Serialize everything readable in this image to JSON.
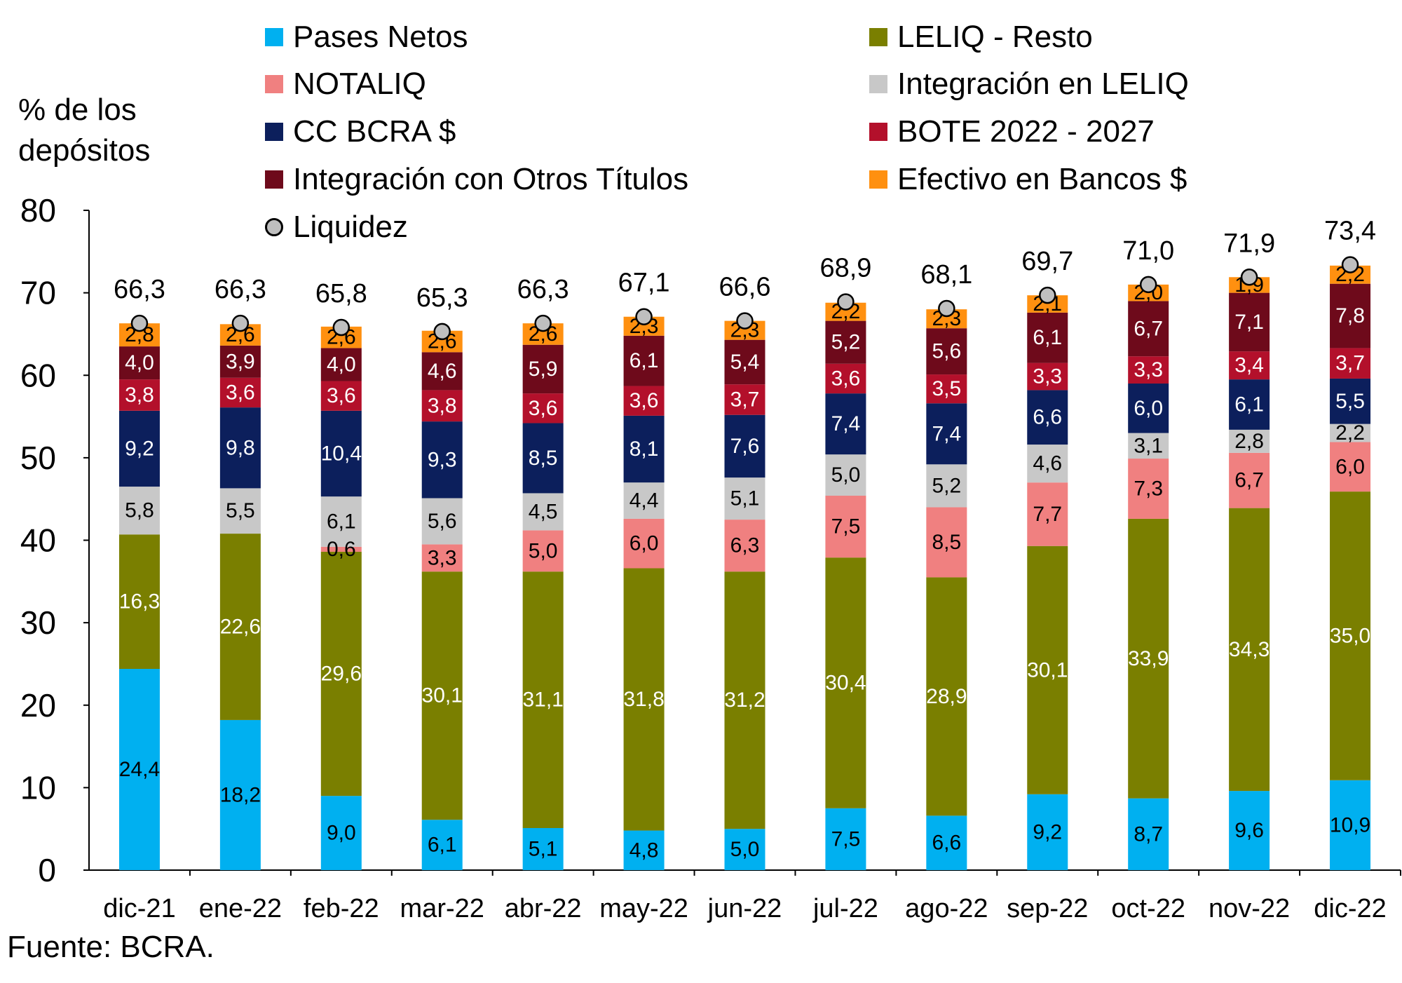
{
  "chart_data": {
    "type": "bar",
    "stacked": true,
    "title": "",
    "xlabel": "",
    "ylabel": "% de los depósitos",
    "ylim": [
      0,
      80
    ],
    "yticks": [
      0,
      10,
      20,
      30,
      40,
      50,
      60,
      70,
      80
    ],
    "grid": false,
    "legend_position": "top",
    "categories": [
      "dic-21",
      "ene-22",
      "feb-22",
      "mar-22",
      "abr-22",
      "may-22",
      "jun-22",
      "jul-22",
      "ago-22",
      "sep-22",
      "oct-22",
      "nov-22",
      "dic-22"
    ],
    "series": [
      {
        "name": "Pases Netos",
        "color": "#00b0f0",
        "label_color": "#000000",
        "values": [
          24.4,
          18.2,
          9.0,
          6.1,
          5.1,
          4.8,
          5.0,
          7.5,
          6.6,
          9.2,
          8.7,
          9.6,
          10.9
        ],
        "labels": [
          "24,4",
          "18,2",
          "9,0",
          "6,1",
          "5,1",
          "4,8",
          "5,0",
          "7,5",
          "6,6",
          "9,2",
          "8,7",
          "9,6",
          "10,9"
        ]
      },
      {
        "name": "LELIQ - Resto",
        "color": "#7a7f00",
        "label_color": "#ffffff",
        "values": [
          16.3,
          22.6,
          29.6,
          30.1,
          31.1,
          31.8,
          31.2,
          30.4,
          28.9,
          30.1,
          33.9,
          34.3,
          35.0
        ],
        "labels": [
          "16,3",
          "22,6",
          "29,6",
          "30,1",
          "31,1",
          "31,8",
          "31,2",
          "30,4",
          "28,9",
          "30,1",
          "33,9",
          "34,3",
          "35,0"
        ]
      },
      {
        "name": "NOTALIQ",
        "color": "#f08080",
        "label_color": "#000000",
        "values": [
          0,
          0,
          0.6,
          3.3,
          5.0,
          6.0,
          6.3,
          7.5,
          8.5,
          7.7,
          7.3,
          6.7,
          6.0
        ],
        "labels": [
          "",
          "",
          "0,6",
          "3,3",
          "5,0",
          "6,0",
          "6,3",
          "7,5",
          "8,5",
          "7,7",
          "7,3",
          "6,7",
          "6,0"
        ]
      },
      {
        "name": "Integración en LELIQ",
        "color": "#c8c8c8",
        "label_color": "#000000",
        "values": [
          5.8,
          5.5,
          6.1,
          5.6,
          4.5,
          4.4,
          5.1,
          5.0,
          5.2,
          4.6,
          3.1,
          2.8,
          2.2
        ],
        "labels": [
          "5,8",
          "5,5",
          "6,1",
          "5,6",
          "4,5",
          "4,4",
          "5,1",
          "5,0",
          "5,2",
          "4,6",
          "3,1",
          "2,8",
          "2,2"
        ]
      },
      {
        "name": "CC BCRA $",
        "color": "#0c1f5c",
        "label_color": "#ffffff",
        "values": [
          9.2,
          9.8,
          10.4,
          9.3,
          8.5,
          8.1,
          7.6,
          7.4,
          7.4,
          6.6,
          6.0,
          6.1,
          5.5
        ],
        "labels": [
          "9,2",
          "9,8",
          "10,4",
          "9,3",
          "8,5",
          "8,1",
          "7,6",
          "7,4",
          "7,4",
          "6,6",
          "6,0",
          "6,1",
          "5,5"
        ]
      },
      {
        "name": "BOTE 2022 - 2027",
        "color": "#b3102b",
        "label_color": "#ffffff",
        "values": [
          3.8,
          3.6,
          3.6,
          3.8,
          3.6,
          3.6,
          3.7,
          3.6,
          3.5,
          3.3,
          3.3,
          3.4,
          3.7
        ],
        "labels": [
          "3,8",
          "3,6",
          "3,6",
          "3,8",
          "3,6",
          "3,6",
          "3,7",
          "3,6",
          "3,5",
          "3,3",
          "3,3",
          "3,4",
          "3,7"
        ]
      },
      {
        "name": "Integración con Otros Títulos",
        "color": "#6e0a1b",
        "label_color": "#ffffff",
        "values": [
          4.0,
          3.9,
          4.0,
          4.6,
          5.9,
          6.1,
          5.4,
          5.2,
          5.6,
          6.1,
          6.7,
          7.1,
          7.8
        ],
        "labels": [
          "4,0",
          "3,9",
          "4,0",
          "4,6",
          "5,9",
          "6,1",
          "5,4",
          "5,2",
          "5,6",
          "6,1",
          "6,7",
          "7,1",
          "7,8"
        ]
      },
      {
        "name": "Efectivo en Bancos $",
        "color": "#ff9010",
        "label_color": "#000000",
        "values": [
          2.8,
          2.6,
          2.6,
          2.6,
          2.6,
          2.3,
          2.3,
          2.2,
          2.3,
          2.1,
          2.0,
          1.9,
          2.2
        ],
        "labels": [
          "2,8",
          "2,6",
          "2,6",
          "2,6",
          "2,6",
          "2,3",
          "2,3",
          "2,2",
          "2,3",
          "2,1",
          "2,0",
          "1,9",
          "2,2"
        ]
      }
    ],
    "markers": {
      "name": "Liquidez",
      "color": "#bfbfbf",
      "values": [
        66.3,
        66.3,
        65.8,
        65.3,
        66.3,
        67.1,
        66.6,
        68.9,
        68.1,
        69.7,
        71.0,
        71.9,
        73.4
      ],
      "labels": [
        "66,3",
        "66,3",
        "65,8",
        "65,3",
        "66,3",
        "67,1",
        "66,6",
        "68,9",
        "68,1",
        "69,7",
        "71,0",
        "71,9",
        "73,4"
      ]
    },
    "source": "Fuente: BCRA."
  }
}
